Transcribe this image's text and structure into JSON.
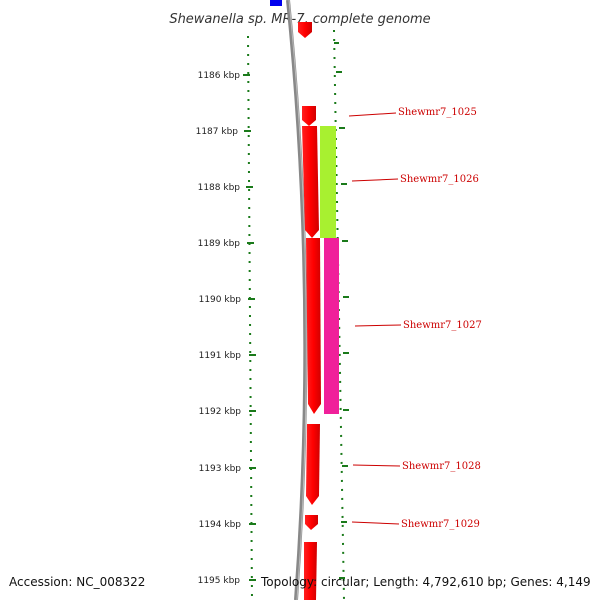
{
  "title": "Shewanella sp. MR-7, complete genome",
  "footer": {
    "accession": "Accession: NC_008322",
    "summary": "Topology: circular; Length: 4,792,610 bp; Genes: 4,149"
  },
  "scale": {
    "unit": "kbp",
    "ticks": [
      "1186 kbp",
      "1187 kbp",
      "1188 kbp",
      "1189 kbp",
      "1190 kbp",
      "1191 kbp",
      "1192 kbp",
      "1193 kbp",
      "1194 kbp",
      "1195 kbp"
    ]
  },
  "genes": [
    {
      "name": "Shewmr7_1025"
    },
    {
      "name": "Shewmr7_1026"
    },
    {
      "name": "Shewmr7_1027"
    },
    {
      "name": "Shewmr7_1028"
    },
    {
      "name": "Shewmr7_1029"
    }
  ],
  "colors": {
    "cds": "#ff0000",
    "backbone": "#888888",
    "scale_dots": "#1a7a1a",
    "cog_lime": "#a8f030",
    "cog_magenta": "#f0209a",
    "marker_blue": "#0000ee",
    "label": "#cc0000"
  }
}
